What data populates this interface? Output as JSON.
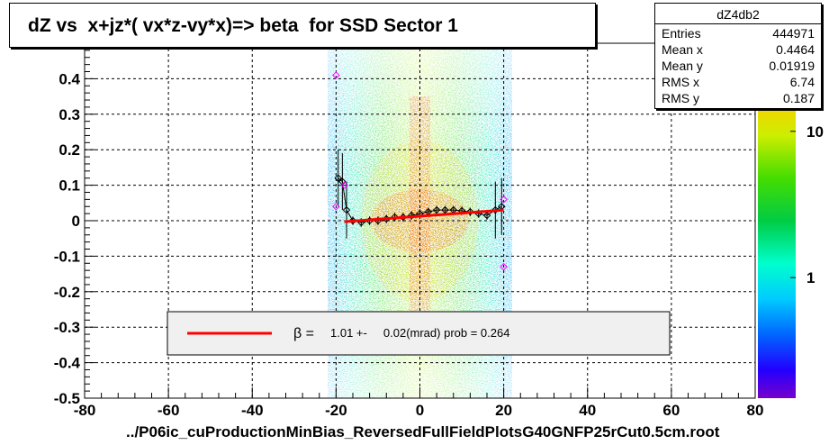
{
  "title": "dZ vs  x+jz*( vx*z-vy*x)=> beta  for SSD Sector 1",
  "filename": "../P06ic_cuProductionMinBias_ReversedFullFieldPlotsG40GNFP25rCut0.5cm.root",
  "stats": {
    "name": "dZ4db2",
    "rows": [
      {
        "label": "Entries",
        "value": "444971"
      },
      {
        "label": "Mean x",
        "value": "0.4464"
      },
      {
        "label": "Mean y",
        "value": "0.01919"
      },
      {
        "label": "RMS x",
        "value": "6.74"
      },
      {
        "label": "RMS y",
        "value": "0.187"
      }
    ]
  },
  "legend": {
    "symbol": "β =",
    "text": "1.01 +-     0.02(mrad) prob = 0.264",
    "line_color": "#ff0000"
  },
  "chart_data": {
    "type": "heatmap",
    "xlim": [
      -80,
      80
    ],
    "ylim": [
      -0.5,
      0.5
    ],
    "x_ticks": [
      -80,
      -60,
      -40,
      -20,
      0,
      20,
      40,
      60,
      80
    ],
    "y_ticks": [
      -0.5,
      -0.4,
      -0.3,
      -0.2,
      -0.1,
      0,
      0.1,
      0.2,
      0.3,
      0.4
    ],
    "y_tick_labels": [
      "-0.5",
      "-0.4",
      "-0.3",
      "-0.2",
      "-0.1",
      "0",
      "0.1",
      "0.2",
      "0.3",
      "0.4"
    ],
    "grid": true,
    "z_scale": "log",
    "colorbar_labels": [
      {
        "value": 10,
        "label": "10"
      },
      {
        "value": 1,
        "label": "1"
      }
    ],
    "fit_line": {
      "x": [
        -18,
        20
      ],
      "y": [
        -0.003,
        0.03
      ],
      "color": "#ff0000"
    },
    "profile_points": {
      "x": [
        -19.5,
        -18.5,
        -17.5,
        -16,
        -14,
        -12,
        -10,
        -8,
        -6,
        -4,
        -2,
        0,
        2,
        4,
        6,
        8,
        10,
        12,
        14,
        16,
        18,
        19.5
      ],
      "y": [
        0.12,
        0.11,
        0.03,
        0.0,
        -0.005,
        0.0,
        0.0,
        0.005,
        0.01,
        0.01,
        0.015,
        0.02,
        0.025,
        0.03,
        0.03,
        0.03,
        0.028,
        0.025,
        0.02,
        0.015,
        0.03,
        0.04
      ]
    },
    "outlier_points": {
      "x": [
        -20,
        -20,
        -18,
        20,
        20
      ],
      "y": [
        0.41,
        0.04,
        0.1,
        0.06,
        -0.13
      ],
      "color": "#ff00ff"
    },
    "colors": {
      "frame": "#000000",
      "band_low": "#00c8ff",
      "band_mid": "#00dd44",
      "band_high": "#ffcc00",
      "core": "#ff3300"
    }
  }
}
